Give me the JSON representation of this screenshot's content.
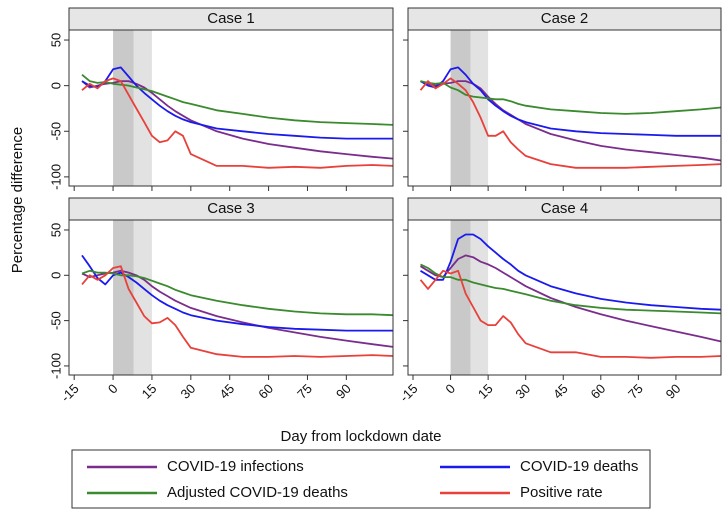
{
  "figure": {
    "ylabel": "Percentage difference",
    "xlabel": "Day from lockdown date"
  },
  "chart_data": [
    {
      "type": "line",
      "title": "Case 1",
      "x": [
        -12,
        -9,
        -6,
        -3,
        0,
        3,
        6,
        9,
        12,
        15,
        18,
        21,
        24,
        27,
        30,
        40,
        50,
        60,
        70,
        80,
        90,
        100,
        108
      ],
      "xlim": [
        -17,
        108
      ],
      "xticks": [
        -15,
        0,
        15,
        30,
        45,
        60,
        75,
        90
      ],
      "ylim": [
        -110,
        61
      ],
      "yticks": [
        -100,
        -50,
        0,
        50
      ],
      "shaded": [
        {
          "from": 0,
          "to": 8,
          "color": "#c9c9c9"
        },
        {
          "from": 8,
          "to": 15,
          "color": "#e2e2e2"
        }
      ],
      "series": [
        {
          "name": "COVID-19 infections",
          "color": "#7b2d8e",
          "values": [
            5,
            -2,
            0,
            2,
            3,
            5,
            5,
            2,
            -2,
            -8,
            -15,
            -22,
            -28,
            -33,
            -38,
            -50,
            -58,
            -64,
            -68,
            -72,
            -75,
            -78,
            -80
          ]
        },
        {
          "name": "COVID-19 deaths",
          "color": "#1a1aee",
          "values": [
            5,
            0,
            -2,
            5,
            18,
            20,
            10,
            0,
            -8,
            -15,
            -22,
            -28,
            -33,
            -37,
            -40,
            -47,
            -50,
            -53,
            -55,
            -57,
            -58,
            -58,
            -58
          ]
        },
        {
          "name": "Adjusted COVID-19 deaths",
          "color": "#3a8a2e",
          "values": [
            12,
            5,
            3,
            4,
            2,
            1,
            0,
            -2,
            -4,
            -6,
            -9,
            -12,
            -15,
            -18,
            -20,
            -27,
            -31,
            -35,
            -38,
            -40,
            -41,
            -42,
            -43
          ]
        },
        {
          "name": "Positive rate",
          "color": "#e8403a",
          "values": [
            -5,
            2,
            -3,
            5,
            8,
            5,
            -10,
            -25,
            -40,
            -55,
            -62,
            -60,
            -50,
            -55,
            -75,
            -88,
            -88,
            -90,
            -89,
            -90,
            -88,
            -87,
            -88
          ]
        }
      ]
    },
    {
      "type": "line",
      "title": "Case 2",
      "x": [
        -12,
        -9,
        -6,
        -3,
        0,
        3,
        6,
        9,
        12,
        15,
        18,
        21,
        24,
        27,
        30,
        40,
        50,
        60,
        70,
        80,
        90,
        100,
        108
      ],
      "xlim": [
        -17,
        108
      ],
      "xticks": [
        -15,
        0,
        15,
        30,
        45,
        60,
        75,
        90
      ],
      "ylim": [
        -110,
        61
      ],
      "yticks": [
        -100,
        -50,
        0,
        50
      ],
      "shaded": [
        {
          "from": 0,
          "to": 8,
          "color": "#c9c9c9"
        },
        {
          "from": 8,
          "to": 15,
          "color": "#e2e2e2"
        }
      ],
      "series": [
        {
          "name": "COVID-19 infections",
          "color": "#7b2d8e",
          "values": [
            5,
            2,
            0,
            2,
            3,
            5,
            5,
            2,
            -3,
            -12,
            -20,
            -27,
            -32,
            -37,
            -42,
            -53,
            -60,
            -66,
            -70,
            -73,
            -76,
            -79,
            -82
          ]
        },
        {
          "name": "COVID-19 deaths",
          "color": "#1a1aee",
          "values": [
            5,
            0,
            -2,
            5,
            18,
            20,
            12,
            2,
            -5,
            -15,
            -22,
            -28,
            -33,
            -37,
            -40,
            -47,
            -50,
            -52,
            -53,
            -54,
            -55,
            -55,
            -55
          ]
        },
        {
          "name": "Adjusted COVID-19 deaths",
          "color": "#3a8a2e",
          "values": [
            5,
            3,
            2,
            3,
            -2,
            -5,
            -10,
            -12,
            -13,
            -14,
            -15,
            -15,
            -17,
            -20,
            -22,
            -26,
            -28,
            -30,
            -31,
            -30,
            -28,
            -26,
            -24
          ]
        },
        {
          "name": "Positive rate",
          "color": "#e8403a",
          "values": [
            -5,
            5,
            -3,
            2,
            8,
            2,
            -5,
            -18,
            -35,
            -55,
            -55,
            -50,
            -62,
            -70,
            -77,
            -86,
            -90,
            -90,
            -90,
            -89,
            -88,
            -87,
            -86
          ]
        }
      ]
    },
    {
      "type": "line",
      "title": "Case 3",
      "x": [
        -12,
        -9,
        -6,
        -3,
        0,
        3,
        6,
        9,
        12,
        15,
        18,
        21,
        24,
        27,
        30,
        40,
        50,
        60,
        70,
        80,
        90,
        100,
        108
      ],
      "xlim": [
        -17,
        108
      ],
      "xticks": [
        -15,
        0,
        15,
        30,
        45,
        60,
        75,
        90
      ],
      "ylim": [
        -110,
        61
      ],
      "yticks": [
        -100,
        -50,
        0,
        50
      ],
      "shaded": [
        {
          "from": 0,
          "to": 8,
          "color": "#c9c9c9"
        },
        {
          "from": 8,
          "to": 15,
          "color": "#e2e2e2"
        }
      ],
      "series": [
        {
          "name": "COVID-19 infections",
          "color": "#7b2d8e",
          "values": [
            2,
            -2,
            0,
            2,
            3,
            5,
            3,
            0,
            -5,
            -12,
            -18,
            -23,
            -28,
            -32,
            -36,
            -45,
            -52,
            -58,
            -63,
            -68,
            -72,
            -76,
            -79
          ]
        },
        {
          "name": "COVID-19 deaths",
          "color": "#1a1aee",
          "values": [
            22,
            10,
            -3,
            -10,
            0,
            3,
            -2,
            -8,
            -15,
            -22,
            -28,
            -33,
            -37,
            -41,
            -44,
            -50,
            -54,
            -57,
            -59,
            -60,
            -61,
            -61,
            -61
          ]
        },
        {
          "name": "Adjusted COVID-19 deaths",
          "color": "#3a8a2e",
          "values": [
            2,
            5,
            3,
            3,
            2,
            0,
            0,
            -1,
            -3,
            -6,
            -9,
            -12,
            -16,
            -19,
            -22,
            -28,
            -33,
            -37,
            -40,
            -42,
            -43,
            -43,
            -44
          ]
        },
        {
          "name": "Positive rate",
          "color": "#e8403a",
          "values": [
            -10,
            0,
            -5,
            0,
            8,
            10,
            -15,
            -30,
            -45,
            -53,
            -52,
            -47,
            -55,
            -68,
            -80,
            -87,
            -90,
            -90,
            -89,
            -90,
            -89,
            -88,
            -89
          ]
        }
      ]
    },
    {
      "type": "line",
      "title": "Case 4",
      "x": [
        -12,
        -9,
        -6,
        -3,
        0,
        3,
        6,
        9,
        12,
        15,
        18,
        21,
        24,
        27,
        30,
        40,
        50,
        60,
        70,
        80,
        90,
        100,
        108
      ],
      "xlim": [
        -17,
        108
      ],
      "xticks": [
        -15,
        0,
        15,
        30,
        45,
        60,
        75,
        90
      ],
      "ylim": [
        -110,
        61
      ],
      "yticks": [
        -100,
        -50,
        0,
        50
      ],
      "shaded": [
        {
          "from": 0,
          "to": 8,
          "color": "#c9c9c9"
        },
        {
          "from": 8,
          "to": 15,
          "color": "#e2e2e2"
        }
      ],
      "series": [
        {
          "name": "COVID-19 infections",
          "color": "#7b2d8e",
          "values": [
            10,
            5,
            0,
            -2,
            8,
            18,
            22,
            20,
            15,
            12,
            8,
            3,
            -2,
            -7,
            -12,
            -25,
            -35,
            -43,
            -50,
            -56,
            -62,
            -68,
            -73
          ]
        },
        {
          "name": "COVID-19 deaths",
          "color": "#1a1aee",
          "values": [
            5,
            0,
            -5,
            -5,
            15,
            40,
            45,
            45,
            40,
            32,
            25,
            18,
            12,
            5,
            0,
            -12,
            -20,
            -26,
            -30,
            -33,
            -35,
            -37,
            -38
          ]
        },
        {
          "name": "Adjusted COVID-19 deaths",
          "color": "#3a8a2e",
          "values": [
            12,
            8,
            2,
            -2,
            -2,
            -5,
            -5,
            -8,
            -10,
            -12,
            -14,
            -15,
            -17,
            -19,
            -21,
            -28,
            -33,
            -36,
            -38,
            -39,
            -40,
            -41,
            -42
          ]
        },
        {
          "name": "Positive rate",
          "color": "#e8403a",
          "values": [
            -5,
            -15,
            -5,
            5,
            2,
            5,
            -20,
            -35,
            -50,
            -55,
            -55,
            -45,
            -52,
            -65,
            -75,
            -85,
            -85,
            -90,
            -90,
            -91,
            -90,
            -90,
            -89
          ]
        }
      ]
    }
  ]
}
